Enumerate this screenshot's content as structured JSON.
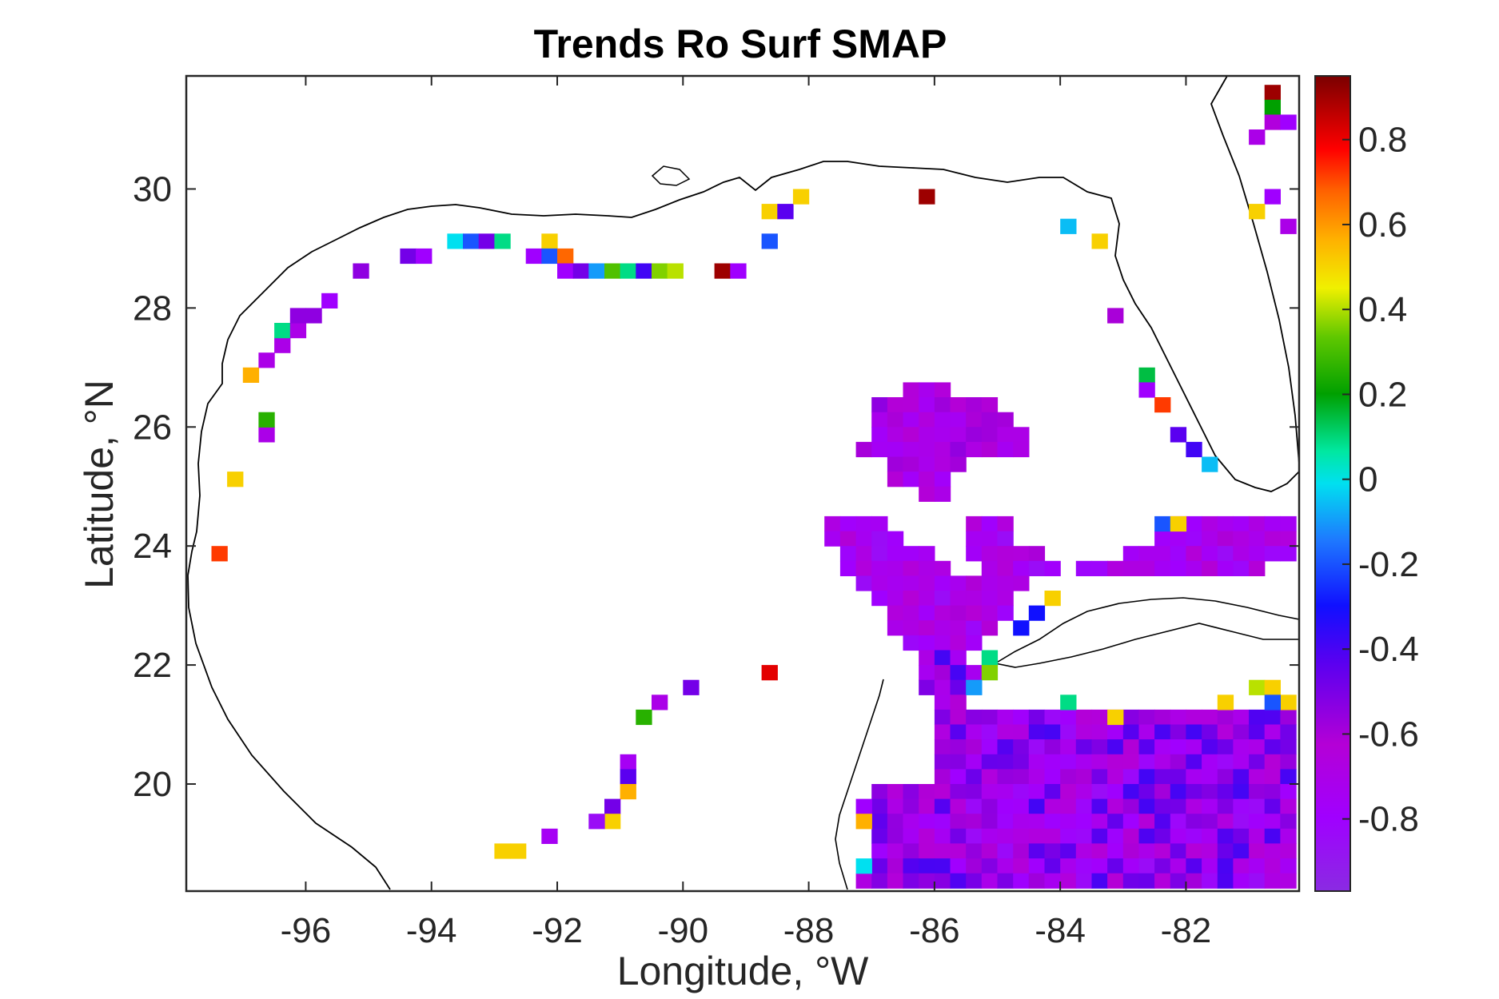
{
  "chart_data": {
    "type": "heatmap",
    "title": "Trends Ro Surf SMAP",
    "xlabel": "Longitude, °W",
    "ylabel": "Latitude, °N",
    "xlim": [
      -97.9,
      -80.2
    ],
    "ylim": [
      18.2,
      31.9
    ],
    "xticks": [
      -96,
      -94,
      -92,
      -90,
      -88,
      -86,
      -84,
      -82
    ],
    "xtick_labels": [
      "-96",
      "-94",
      "-92",
      "-90",
      "-88",
      "-86",
      "-84",
      "-82"
    ],
    "yticks": [
      20,
      22,
      24,
      26,
      28,
      30
    ],
    "ytick_labels": [
      "20",
      "22",
      "24",
      "26",
      "28",
      "30"
    ],
    "grid": false,
    "colorbar": {
      "range": [
        -0.97,
        0.95
      ],
      "ticks": [
        0.8,
        0.6,
        0.4,
        0.2,
        0,
        -0.2,
        -0.4,
        -0.6,
        -0.8
      ],
      "tick_labels": [
        "0.8",
        "0.6",
        "0.4",
        "0.2",
        "0",
        "-0.2",
        "-0.4",
        "-0.6",
        "-0.8"
      ],
      "colormap": "violet-blue-cyan-green-yellow-orange-red-darkred",
      "position": "right"
    },
    "cell_size_deg": 0.25,
    "scattered_cells": [
      [
        -97.375,
        23.875,
        0.7
      ],
      [
        -97.125,
        25.125,
        0.5
      ],
      [
        -96.625,
        25.875,
        -0.7
      ],
      [
        -96.625,
        26.125,
        0.25
      ],
      [
        -96.875,
        26.875,
        0.55
      ],
      [
        -96.625,
        27.125,
        -0.7
      ],
      [
        -96.375,
        27.375,
        -0.7
      ],
      [
        -96.375,
        27.625,
        0.1
      ],
      [
        -96.125,
        27.625,
        -0.7
      ],
      [
        -96.125,
        27.875,
        -0.55
      ],
      [
        -95.875,
        27.875,
        -0.55
      ],
      [
        -95.625,
        28.125,
        -0.8
      ],
      [
        -95.125,
        28.625,
        -0.55
      ],
      [
        -94.375,
        28.875,
        -0.5
      ],
      [
        -94.125,
        28.875,
        -0.8
      ],
      [
        -93.625,
        29.125,
        0.0
      ],
      [
        -93.375,
        29.125,
        -0.2
      ],
      [
        -93.125,
        29.125,
        -0.5
      ],
      [
        -92.875,
        29.125,
        0.1
      ],
      [
        -92.125,
        29.125,
        0.5
      ],
      [
        -92.375,
        28.875,
        -0.8
      ],
      [
        -92.125,
        28.875,
        -0.2
      ],
      [
        -91.875,
        28.875,
        0.65
      ],
      [
        -91.875,
        28.625,
        -0.8
      ],
      [
        -91.625,
        28.625,
        -0.5
      ],
      [
        -91.375,
        28.625,
        -0.1
      ],
      [
        -91.125,
        28.625,
        0.3
      ],
      [
        -90.875,
        28.625,
        0.1
      ],
      [
        -90.625,
        28.625,
        -0.4
      ],
      [
        -90.375,
        28.625,
        0.35
      ],
      [
        -90.125,
        28.625,
        0.4
      ],
      [
        -89.375,
        28.625,
        0.9
      ],
      [
        -89.125,
        28.625,
        -0.8
      ],
      [
        -88.625,
        29.625,
        0.5
      ],
      [
        -88.375,
        29.625,
        -0.45
      ],
      [
        -88.125,
        29.875,
        0.5
      ],
      [
        -88.625,
        29.125,
        -0.2
      ],
      [
        -86.125,
        29.875,
        0.9
      ],
      [
        -83.875,
        29.375,
        -0.05
      ],
      [
        -83.375,
        29.125,
        0.5
      ],
      [
        -83.125,
        27.875,
        -0.6
      ],
      [
        -82.625,
        26.875,
        0.15
      ],
      [
        -82.625,
        26.625,
        -0.8
      ],
      [
        -82.375,
        26.375,
        0.7
      ],
      [
        -82.125,
        25.875,
        -0.45
      ],
      [
        -81.875,
        25.625,
        -0.4
      ],
      [
        -81.625,
        25.375,
        -0.05
      ],
      [
        -80.625,
        31.625,
        0.9
      ],
      [
        -80.625,
        31.375,
        0.2
      ],
      [
        -80.625,
        31.125,
        -0.65
      ],
      [
        -80.375,
        31.125,
        -0.8
      ],
      [
        -80.875,
        30.875,
        -0.7
      ],
      [
        -80.625,
        29.875,
        -0.8
      ],
      [
        -80.875,
        29.625,
        0.5
      ],
      [
        -80.375,
        29.375,
        -0.7
      ],
      [
        -84.125,
        23.125,
        0.5
      ],
      [
        -84.375,
        22.875,
        -0.3
      ],
      [
        -84.625,
        22.625,
        -0.3
      ],
      [
        -85.125,
        22.125,
        0.1
      ],
      [
        -85.125,
        21.875,
        0.35
      ],
      [
        -85.375,
        21.625,
        -0.1
      ],
      [
        -88.625,
        21.875,
        0.8
      ],
      [
        -89.875,
        21.625,
        -0.5
      ],
      [
        -90.375,
        21.375,
        -0.7
      ],
      [
        -90.625,
        21.125,
        0.25
      ],
      [
        -90.875,
        20.375,
        -0.75
      ],
      [
        -90.875,
        20.125,
        -0.45
      ],
      [
        -90.875,
        19.875,
        0.55
      ],
      [
        -91.125,
        19.625,
        -0.5
      ],
      [
        -91.125,
        19.375,
        0.5
      ],
      [
        -91.375,
        19.375,
        -0.85
      ],
      [
        -92.125,
        19.125,
        -0.75
      ],
      [
        -92.625,
        18.875,
        0.5
      ],
      [
        -92.875,
        18.875,
        0.5
      ],
      [
        -87.125,
        19.625,
        -0.8
      ],
      [
        -87.125,
        19.375,
        0.55
      ],
      [
        -87.125,
        18.625,
        0.0
      ],
      [
        -83.125,
        21.125,
        0.5
      ],
      [
        -83.875,
        21.375,
        0.1
      ],
      [
        -82.375,
        24.375,
        -0.2
      ],
      [
        -82.125,
        24.375,
        0.5
      ],
      [
        -81.375,
        21.375,
        0.5
      ],
      [
        -80.875,
        21.625,
        0.4
      ],
      [
        -80.625,
        21.625,
        0.5
      ],
      [
        -80.375,
        21.375,
        0.5
      ],
      [
        -80.625,
        21.375,
        -0.2
      ]
    ],
    "regions": [
      {
        "name": "north-blob",
        "value_range": [
          -0.8,
          -0.55
        ],
        "rows": [
          [
            26.625,
            -86.375,
            -85.875
          ],
          [
            26.375,
            -86.875,
            -85.125
          ],
          [
            26.125,
            -86.875,
            -84.875
          ],
          [
            25.875,
            -86.875,
            -84.625
          ],
          [
            25.625,
            -87.125,
            -84.625
          ],
          [
            25.375,
            -86.625,
            -85.625
          ],
          [
            25.125,
            -86.625,
            -85.875
          ],
          [
            24.875,
            -86.125,
            -85.875
          ]
        ]
      },
      {
        "name": "central-band",
        "value_range": [
          -0.85,
          -0.6
        ],
        "rows": [
          [
            24.375,
            -87.625,
            -86.875
          ],
          [
            24.125,
            -87.625,
            -86.625
          ],
          [
            23.875,
            -87.375,
            -86.125
          ],
          [
            23.625,
            -87.375,
            -85.875
          ],
          [
            23.375,
            -87.125,
            -85.375
          ],
          [
            23.125,
            -86.875,
            -85.125
          ],
          [
            22.875,
            -86.625,
            -85.125
          ],
          [
            22.625,
            -86.625,
            -85.125
          ],
          [
            22.375,
            -86.375,
            -85.375
          ],
          [
            24.375,
            -85.375,
            -84.875
          ],
          [
            24.125,
            -85.375,
            -84.875
          ],
          [
            23.875,
            -85.375,
            -84.375
          ],
          [
            23.625,
            -85.125,
            -84.125
          ],
          [
            23.375,
            -85.125,
            -84.625
          ],
          [
            23.125,
            -85.375,
            -84.875
          ],
          [
            22.875,
            -85.375,
            -84.875
          ],
          [
            24.375,
            -82.125,
            -80.375
          ],
          [
            24.125,
            -82.375,
            -80.375
          ],
          [
            23.875,
            -82.875,
            -80.375
          ],
          [
            23.625,
            -83.625,
            -80.875
          ]
        ]
      },
      {
        "name": "south-block",
        "value_range": [
          -0.85,
          -0.4
        ],
        "rows": [
          [
            22.125,
            -86.125,
            -85.625
          ],
          [
            21.875,
            -86.125,
            -85.375
          ],
          [
            21.625,
            -86.125,
            -85.625
          ],
          [
            21.375,
            -85.875,
            -85.625
          ],
          [
            21.125,
            -85.875,
            -80.375
          ],
          [
            20.875,
            -85.875,
            -80.375
          ],
          [
            20.625,
            -85.875,
            -80.375
          ],
          [
            20.375,
            -85.875,
            -80.375
          ],
          [
            20.125,
            -85.875,
            -80.375
          ],
          [
            19.875,
            -86.875,
            -80.375
          ],
          [
            19.625,
            -86.875,
            -80.375
          ],
          [
            19.375,
            -86.875,
            -80.375
          ],
          [
            19.125,
            -86.875,
            -80.375
          ],
          [
            18.875,
            -86.875,
            -80.375
          ],
          [
            18.625,
            -86.875,
            -80.375
          ],
          [
            18.375,
            -87.125,
            -80.375
          ]
        ]
      }
    ]
  }
}
